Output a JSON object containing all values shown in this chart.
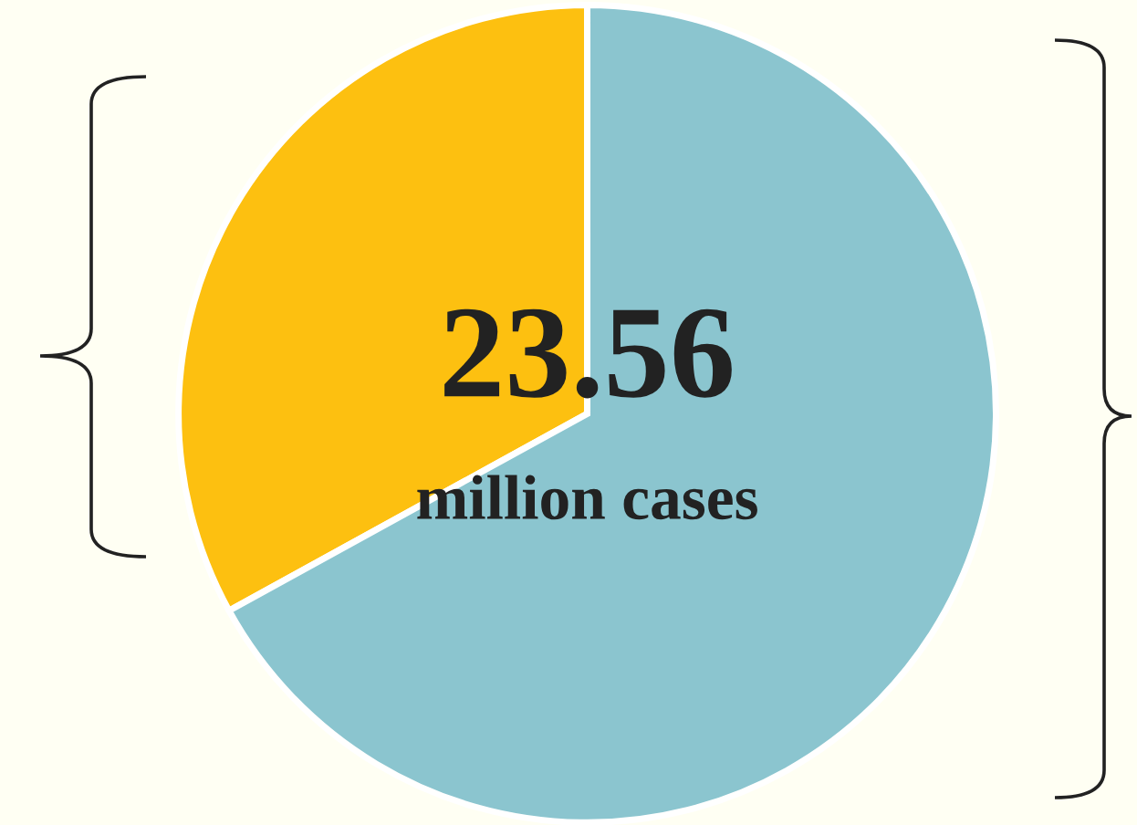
{
  "chart_data": {
    "type": "pie",
    "categories": [
      null,
      null
    ],
    "values": [
      33,
      67
    ],
    "colors": [
      "#fdc010",
      "#8bc5cf"
    ],
    "annotations": [
      "23.56",
      "million cases"
    ]
  }
}
